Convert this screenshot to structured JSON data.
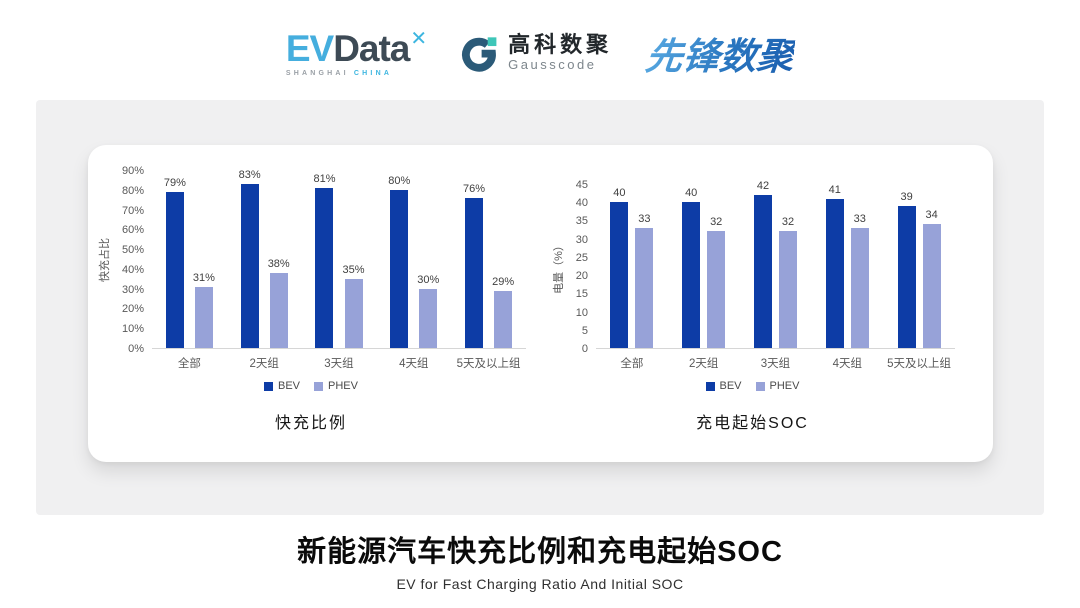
{
  "header": {
    "evdata": {
      "ev": "EV",
      "data": "Data",
      "sub_left": "SHANGHAI",
      "sub_right": "CHINA"
    },
    "gausscode": {
      "name_cn": "高科数聚",
      "name_en": "Gausscode"
    },
    "pioneer": {
      "name": "先锋数聚"
    }
  },
  "footer": {
    "title": "新能源汽车快充比例和充电起始SOC",
    "subtitle": "EV for Fast Charging Ratio And Initial SOC"
  },
  "colors": {
    "bev": "#0d3ca6",
    "phev": "#97a2d8",
    "panel_bg": "#f0f0f1",
    "card_bg": "#ffffff"
  },
  "chart_data": [
    {
      "type": "bar",
      "title": "快充比例",
      "ylabel": "快充占比",
      "categories": [
        "全部",
        "2天组",
        "3天组",
        "4天组",
        "5天及以上组"
      ],
      "series": [
        {
          "name": "BEV",
          "color": "#0d3ca6",
          "values": [
            79,
            83,
            81,
            80,
            76
          ]
        },
        {
          "name": "PHEV",
          "color": "#97a2d8",
          "values": [
            31,
            38,
            35,
            30,
            29
          ]
        }
      ],
      "ylim": [
        0,
        90
      ],
      "ytick_step": 10,
      "ytick_suffix": "%",
      "label_suffix": "%",
      "grid": false,
      "legend_position": "bottom"
    },
    {
      "type": "bar",
      "title": "充电起始SOC",
      "ylabel": "电量（%）",
      "categories": [
        "全部",
        "2天组",
        "3天组",
        "4天组",
        "5天及以上组"
      ],
      "series": [
        {
          "name": "BEV",
          "color": "#0d3ca6",
          "values": [
            40,
            40,
            42,
            41,
            39
          ]
        },
        {
          "name": "PHEV",
          "color": "#97a2d8",
          "values": [
            33,
            32,
            32,
            33,
            34
          ]
        }
      ],
      "ylim": [
        0,
        45
      ],
      "ytick_step": 5,
      "ytick_suffix": "",
      "label_suffix": "",
      "grid": false,
      "legend_position": "bottom"
    }
  ]
}
